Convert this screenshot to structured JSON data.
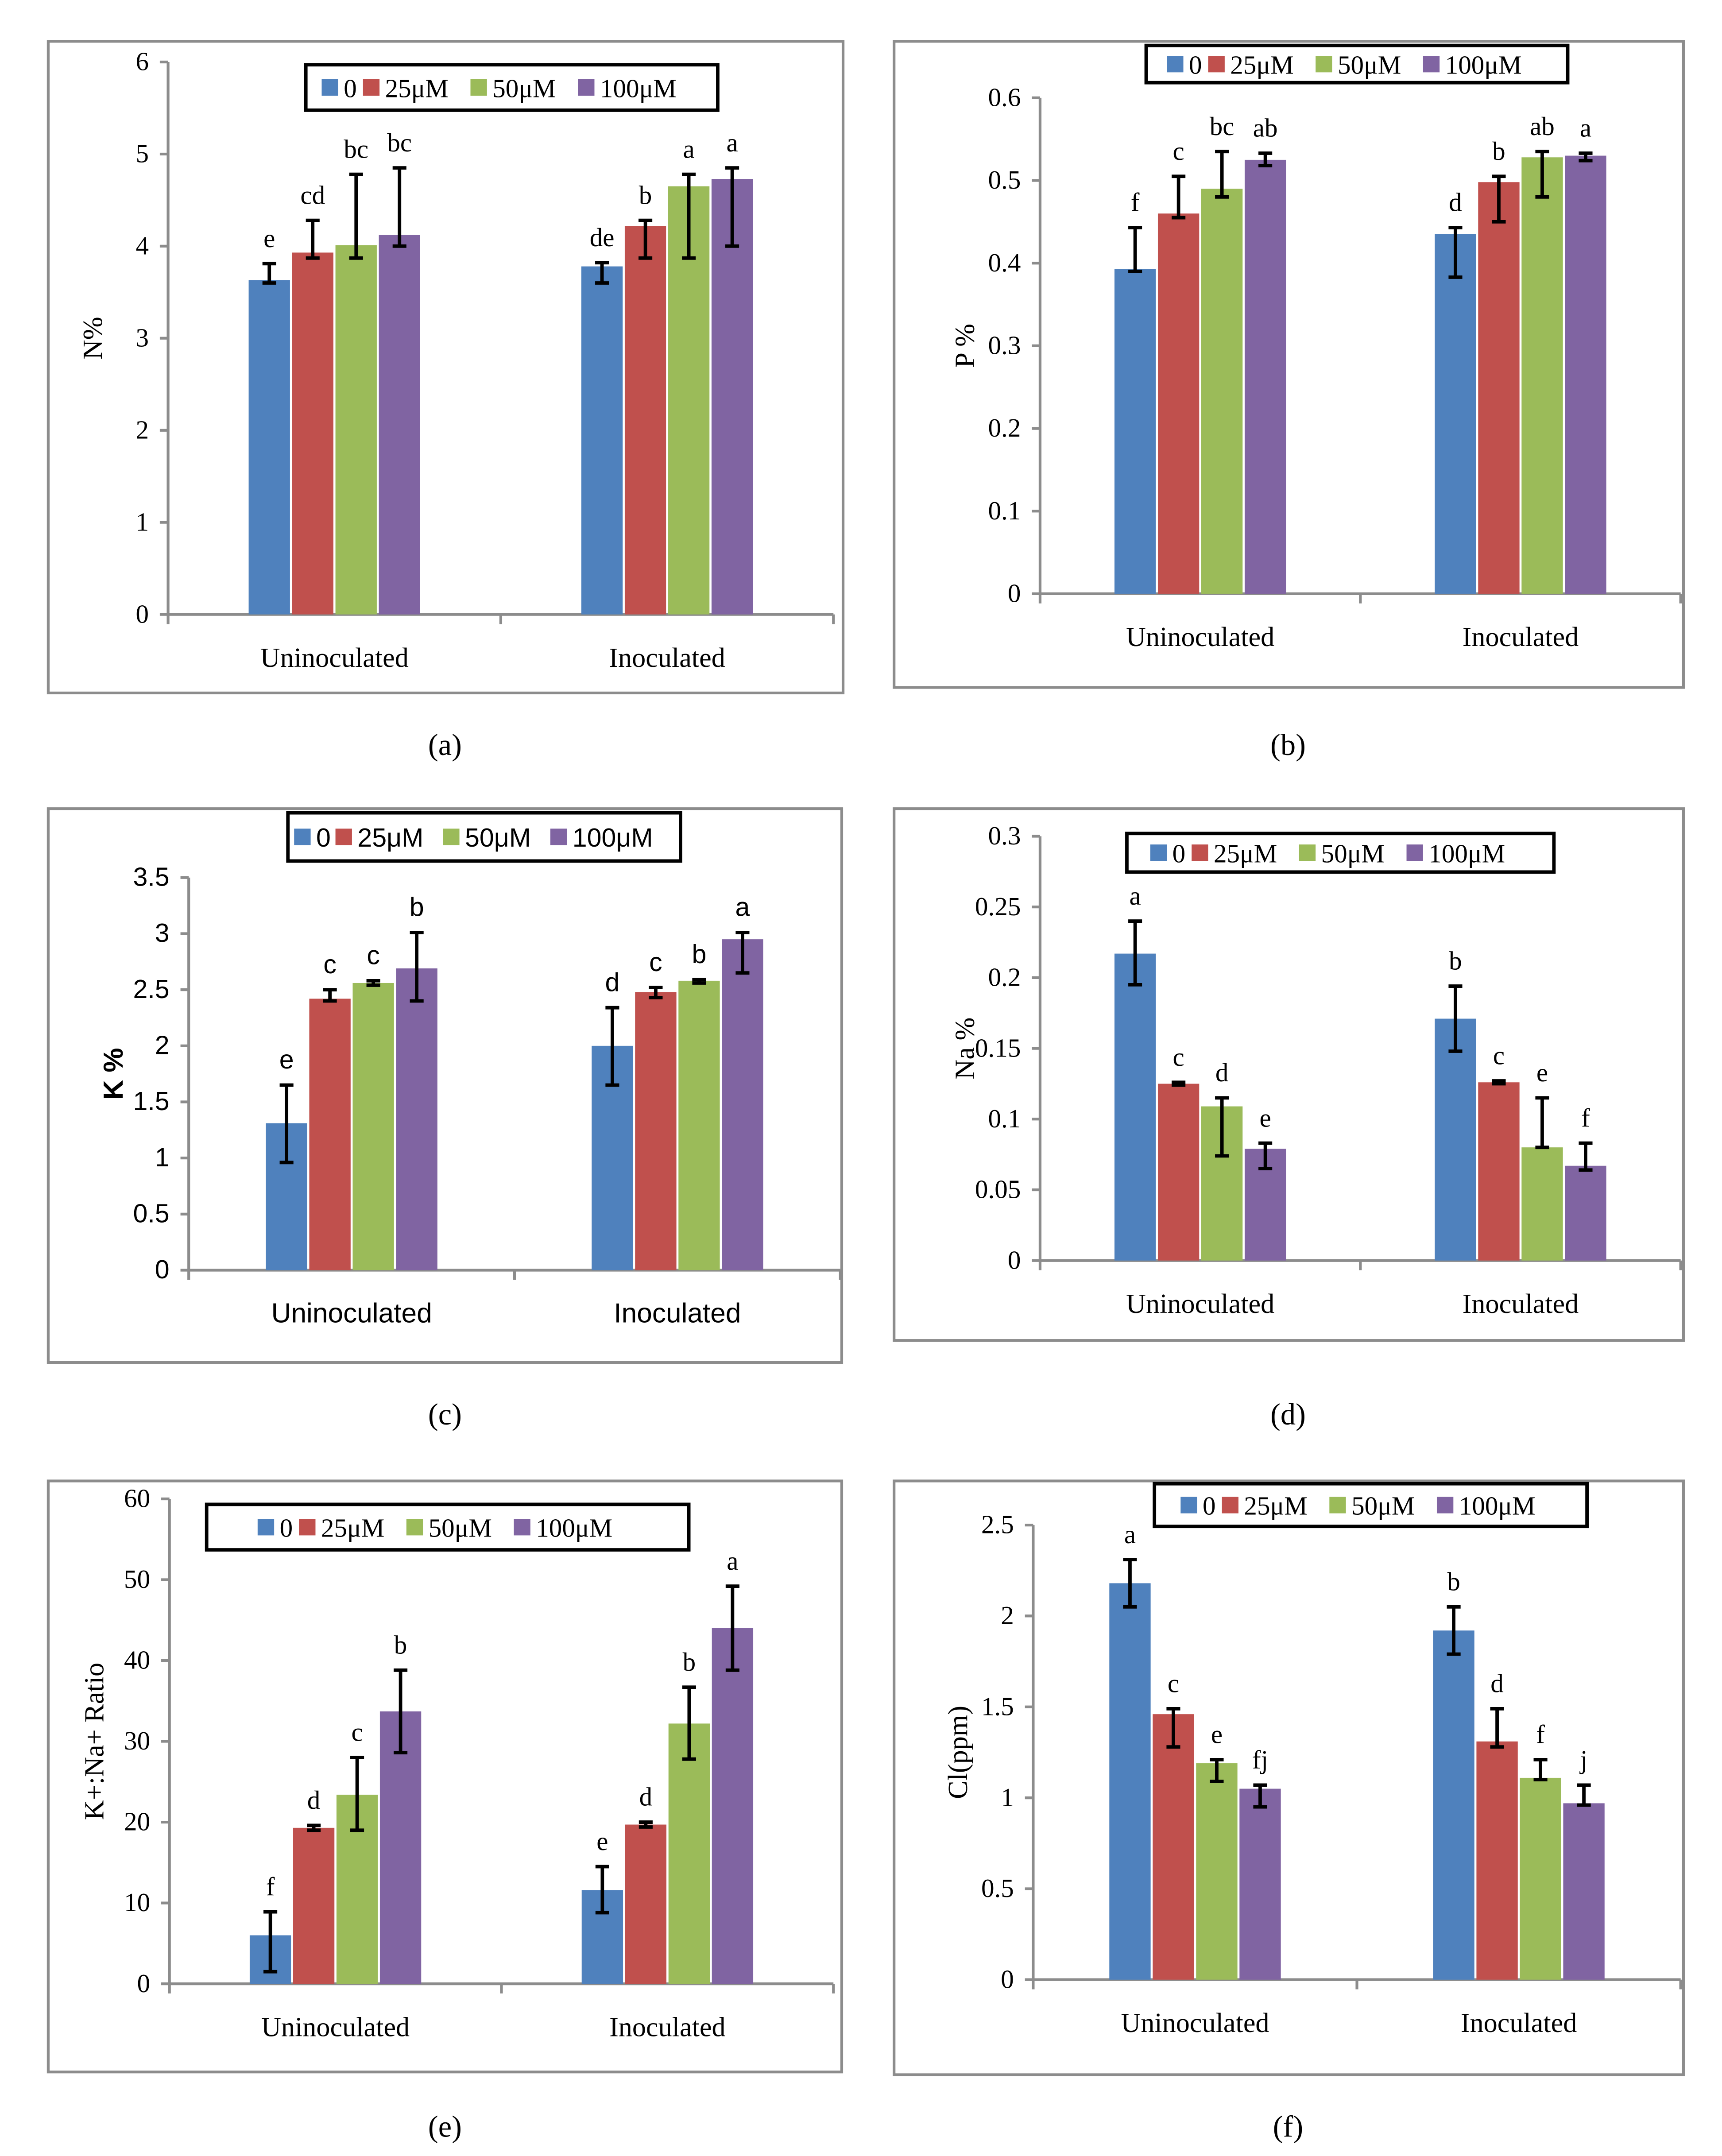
{
  "legend": {
    "series": [
      "0",
      "25μM",
      "50μM",
      "100μM"
    ]
  },
  "colors": {
    "0": "#4F81BD",
    "25μM": "#C0504D",
    "50μM": "#9BBB59",
    "100μM": "#8064A2",
    "frame": "#8c8c8c",
    "axis": "#8c8c8c"
  },
  "chart_data": [
    {
      "panel": "(a)",
      "type": "bar",
      "ylabel": "N%",
      "ylim": [
        0,
        6
      ],
      "yticks": [
        "0",
        "1",
        "2",
        "3",
        "4",
        "5",
        "6"
      ],
      "ytick_values": [
        0,
        1,
        2,
        3,
        4,
        5,
        6
      ],
      "categories": [
        "Uninoculated",
        "Inoculated"
      ],
      "series": [
        {
          "name": "0",
          "values": [
            3.63,
            3.78
          ],
          "err": [
            [
              3.6,
              3.81
            ],
            [
              3.6,
              3.82
            ]
          ],
          "letters": [
            "e",
            "de"
          ]
        },
        {
          "name": "25μM",
          "values": [
            3.93,
            4.22
          ],
          "err": [
            [
              3.87,
              4.28
            ],
            [
              3.87,
              4.28
            ]
          ],
          "letters": [
            "cd",
            "b"
          ]
        },
        {
          "name": "50μM",
          "values": [
            4.01,
            4.65
          ],
          "err": [
            [
              3.87,
              4.78
            ],
            [
              3.87,
              4.78
            ]
          ],
          "letters": [
            "bc",
            "a"
          ]
        },
        {
          "name": "100μM",
          "values": [
            4.12,
            4.73
          ],
          "err": [
            [
              4.0,
              4.85
            ],
            [
              4.0,
              4.85
            ]
          ],
          "letters": [
            "bc",
            "a"
          ]
        }
      ]
    },
    {
      "panel": "(b)",
      "type": "bar",
      "ylabel": "P %",
      "ylim": [
        0,
        0.6
      ],
      "yticks": [
        "0",
        "0.1",
        "0.2",
        "0.3",
        "0.4",
        "0.5",
        "0.6"
      ],
      "ytick_values": [
        0,
        0.1,
        0.2,
        0.3,
        0.4,
        0.5,
        0.6
      ],
      "categories": [
        "Uninoculated",
        "Inoculated"
      ],
      "series": [
        {
          "name": "0",
          "values": [
            0.393,
            0.435
          ],
          "err": [
            [
              0.39,
              0.443
            ],
            [
              0.383,
              0.443
            ]
          ],
          "letters": [
            "f",
            "d"
          ]
        },
        {
          "name": "25μM",
          "values": [
            0.46,
            0.498
          ],
          "err": [
            [
              0.455,
              0.505
            ],
            [
              0.45,
              0.505
            ]
          ],
          "letters": [
            "c",
            "b"
          ]
        },
        {
          "name": "50μM",
          "values": [
            0.49,
            0.528
          ],
          "err": [
            [
              0.48,
              0.535
            ],
            [
              0.48,
              0.535
            ]
          ],
          "letters": [
            "bc",
            "ab"
          ]
        },
        {
          "name": "100μM",
          "values": [
            0.525,
            0.53
          ],
          "err": [
            [
              0.518,
              0.533
            ],
            [
              0.524,
              0.533
            ]
          ],
          "letters": [
            "ab",
            "a"
          ]
        }
      ]
    },
    {
      "panel": "(c)",
      "type": "bar",
      "ylabel": "K %",
      "ylim": [
        0,
        3.5
      ],
      "yticks": [
        "0",
        "0.5",
        "1",
        "1.5",
        "2",
        "2.5",
        "3",
        "3.5"
      ],
      "ytick_values": [
        0,
        0.5,
        1,
        1.5,
        2,
        2.5,
        3,
        3.5
      ],
      "categories": [
        "Uninoculated",
        "Inoculated"
      ],
      "series": [
        {
          "name": "0",
          "values": [
            1.31,
            2.0
          ],
          "err": [
            [
              0.96,
              1.65
            ],
            [
              1.65,
              2.34
            ]
          ],
          "letters": [
            "e",
            "d"
          ]
        },
        {
          "name": "25μM",
          "values": [
            2.42,
            2.48
          ],
          "err": [
            [
              2.4,
              2.5
            ],
            [
              2.43,
              2.52
            ]
          ],
          "letters": [
            "c",
            "c"
          ]
        },
        {
          "name": "50μM",
          "values": [
            2.56,
            2.58
          ],
          "err": [
            [
              2.54,
              2.58
            ],
            [
              2.56,
              2.59
            ]
          ],
          "letters": [
            "c",
            "b"
          ]
        },
        {
          "name": "100μM",
          "values": [
            2.69,
            2.95
          ],
          "err": [
            [
              2.4,
              3.01
            ],
            [
              2.65,
              3.01
            ]
          ],
          "letters": [
            "b",
            "a"
          ]
        }
      ]
    },
    {
      "panel": "(d)",
      "type": "bar",
      "ylabel": "Na %",
      "ylim": [
        0,
        0.3
      ],
      "yticks": [
        "0",
        "0.05",
        "0.1",
        "0.15",
        "0.2",
        "0.25",
        "0.3"
      ],
      "ytick_values": [
        0,
        0.05,
        0.1,
        0.15,
        0.2,
        0.25,
        0.3
      ],
      "categories": [
        "Uninoculated",
        "Inoculated"
      ],
      "series": [
        {
          "name": "0",
          "values": [
            0.217,
            0.171
          ],
          "err": [
            [
              0.195,
              0.24
            ],
            [
              0.148,
              0.194
            ]
          ],
          "letters": [
            "a",
            "b"
          ]
        },
        {
          "name": "25μM",
          "values": [
            0.125,
            0.126
          ],
          "err": [
            [
              0.124,
              0.126
            ],
            [
              0.125,
              0.127
            ]
          ],
          "letters": [
            "c",
            "c"
          ]
        },
        {
          "name": "50μM",
          "values": [
            0.109,
            0.08
          ],
          "err": [
            [
              0.074,
              0.115
            ],
            [
              0.08,
              0.115
            ]
          ],
          "letters": [
            "d",
            "e"
          ]
        },
        {
          "name": "100μM",
          "values": [
            0.079,
            0.067
          ],
          "err": [
            [
              0.065,
              0.083
            ],
            [
              0.064,
              0.083
            ]
          ],
          "letters": [
            "e",
            "f"
          ]
        }
      ]
    },
    {
      "panel": "(e)",
      "type": "bar",
      "ylabel": "K+:Na+ Ratio",
      "ylim": [
        0,
        60
      ],
      "yticks": [
        "0",
        "10",
        "20",
        "30",
        "40",
        "50",
        "60"
      ],
      "ytick_values": [
        0,
        10,
        20,
        30,
        40,
        50,
        60
      ],
      "categories": [
        "Uninoculated",
        "Inoculated"
      ],
      "series": [
        {
          "name": "0",
          "values": [
            6.0,
            11.6
          ],
          "err": [
            [
              1.5,
              8.9
            ],
            [
              8.8,
              14.5
            ]
          ],
          "letters": [
            "f",
            "e"
          ]
        },
        {
          "name": "25μM",
          "values": [
            19.3,
            19.7
          ],
          "err": [
            [
              19.0,
              19.6
            ],
            [
              19.4,
              20.0
            ]
          ],
          "letters": [
            "d",
            "d"
          ]
        },
        {
          "name": "50μM",
          "values": [
            23.4,
            32.2
          ],
          "err": [
            [
              19.0,
              28.0
            ],
            [
              27.8,
              36.7
            ]
          ],
          "letters": [
            "c",
            "b"
          ]
        },
        {
          "name": "100μM",
          "values": [
            33.7,
            44.0
          ],
          "err": [
            [
              28.6,
              38.8
            ],
            [
              38.8,
              49.2
            ]
          ],
          "letters": [
            "b",
            "a"
          ]
        }
      ]
    },
    {
      "panel": "(f)",
      "type": "bar",
      "ylabel": "Cl(ppm)",
      "ylim": [
        0,
        2.5
      ],
      "yticks": [
        "0",
        "0.5",
        "1",
        "1.5",
        "2",
        "2.5"
      ],
      "ytick_values": [
        0,
        0.5,
        1,
        1.5,
        2,
        2.5
      ],
      "categories": [
        "Uninoculated",
        "Inoculated"
      ],
      "series": [
        {
          "name": "0",
          "values": [
            2.18,
            1.92
          ],
          "err": [
            [
              2.05,
              2.31
            ],
            [
              1.79,
              2.05
            ]
          ],
          "letters": [
            "a",
            "b"
          ]
        },
        {
          "name": "25μM",
          "values": [
            1.46,
            1.31
          ],
          "err": [
            [
              1.28,
              1.49
            ],
            [
              1.28,
              1.49
            ]
          ],
          "letters": [
            "c",
            "d"
          ]
        },
        {
          "name": "50μM",
          "values": [
            1.19,
            1.11
          ],
          "err": [
            [
              1.09,
              1.21
            ],
            [
              1.1,
              1.21
            ]
          ],
          "letters": [
            "e",
            "f"
          ]
        },
        {
          "name": "100μM",
          "values": [
            1.05,
            0.97
          ],
          "err": [
            [
              0.95,
              1.07
            ],
            [
              0.96,
              1.07
            ]
          ],
          "letters": [
            "fj",
            "j"
          ]
        }
      ]
    }
  ]
}
